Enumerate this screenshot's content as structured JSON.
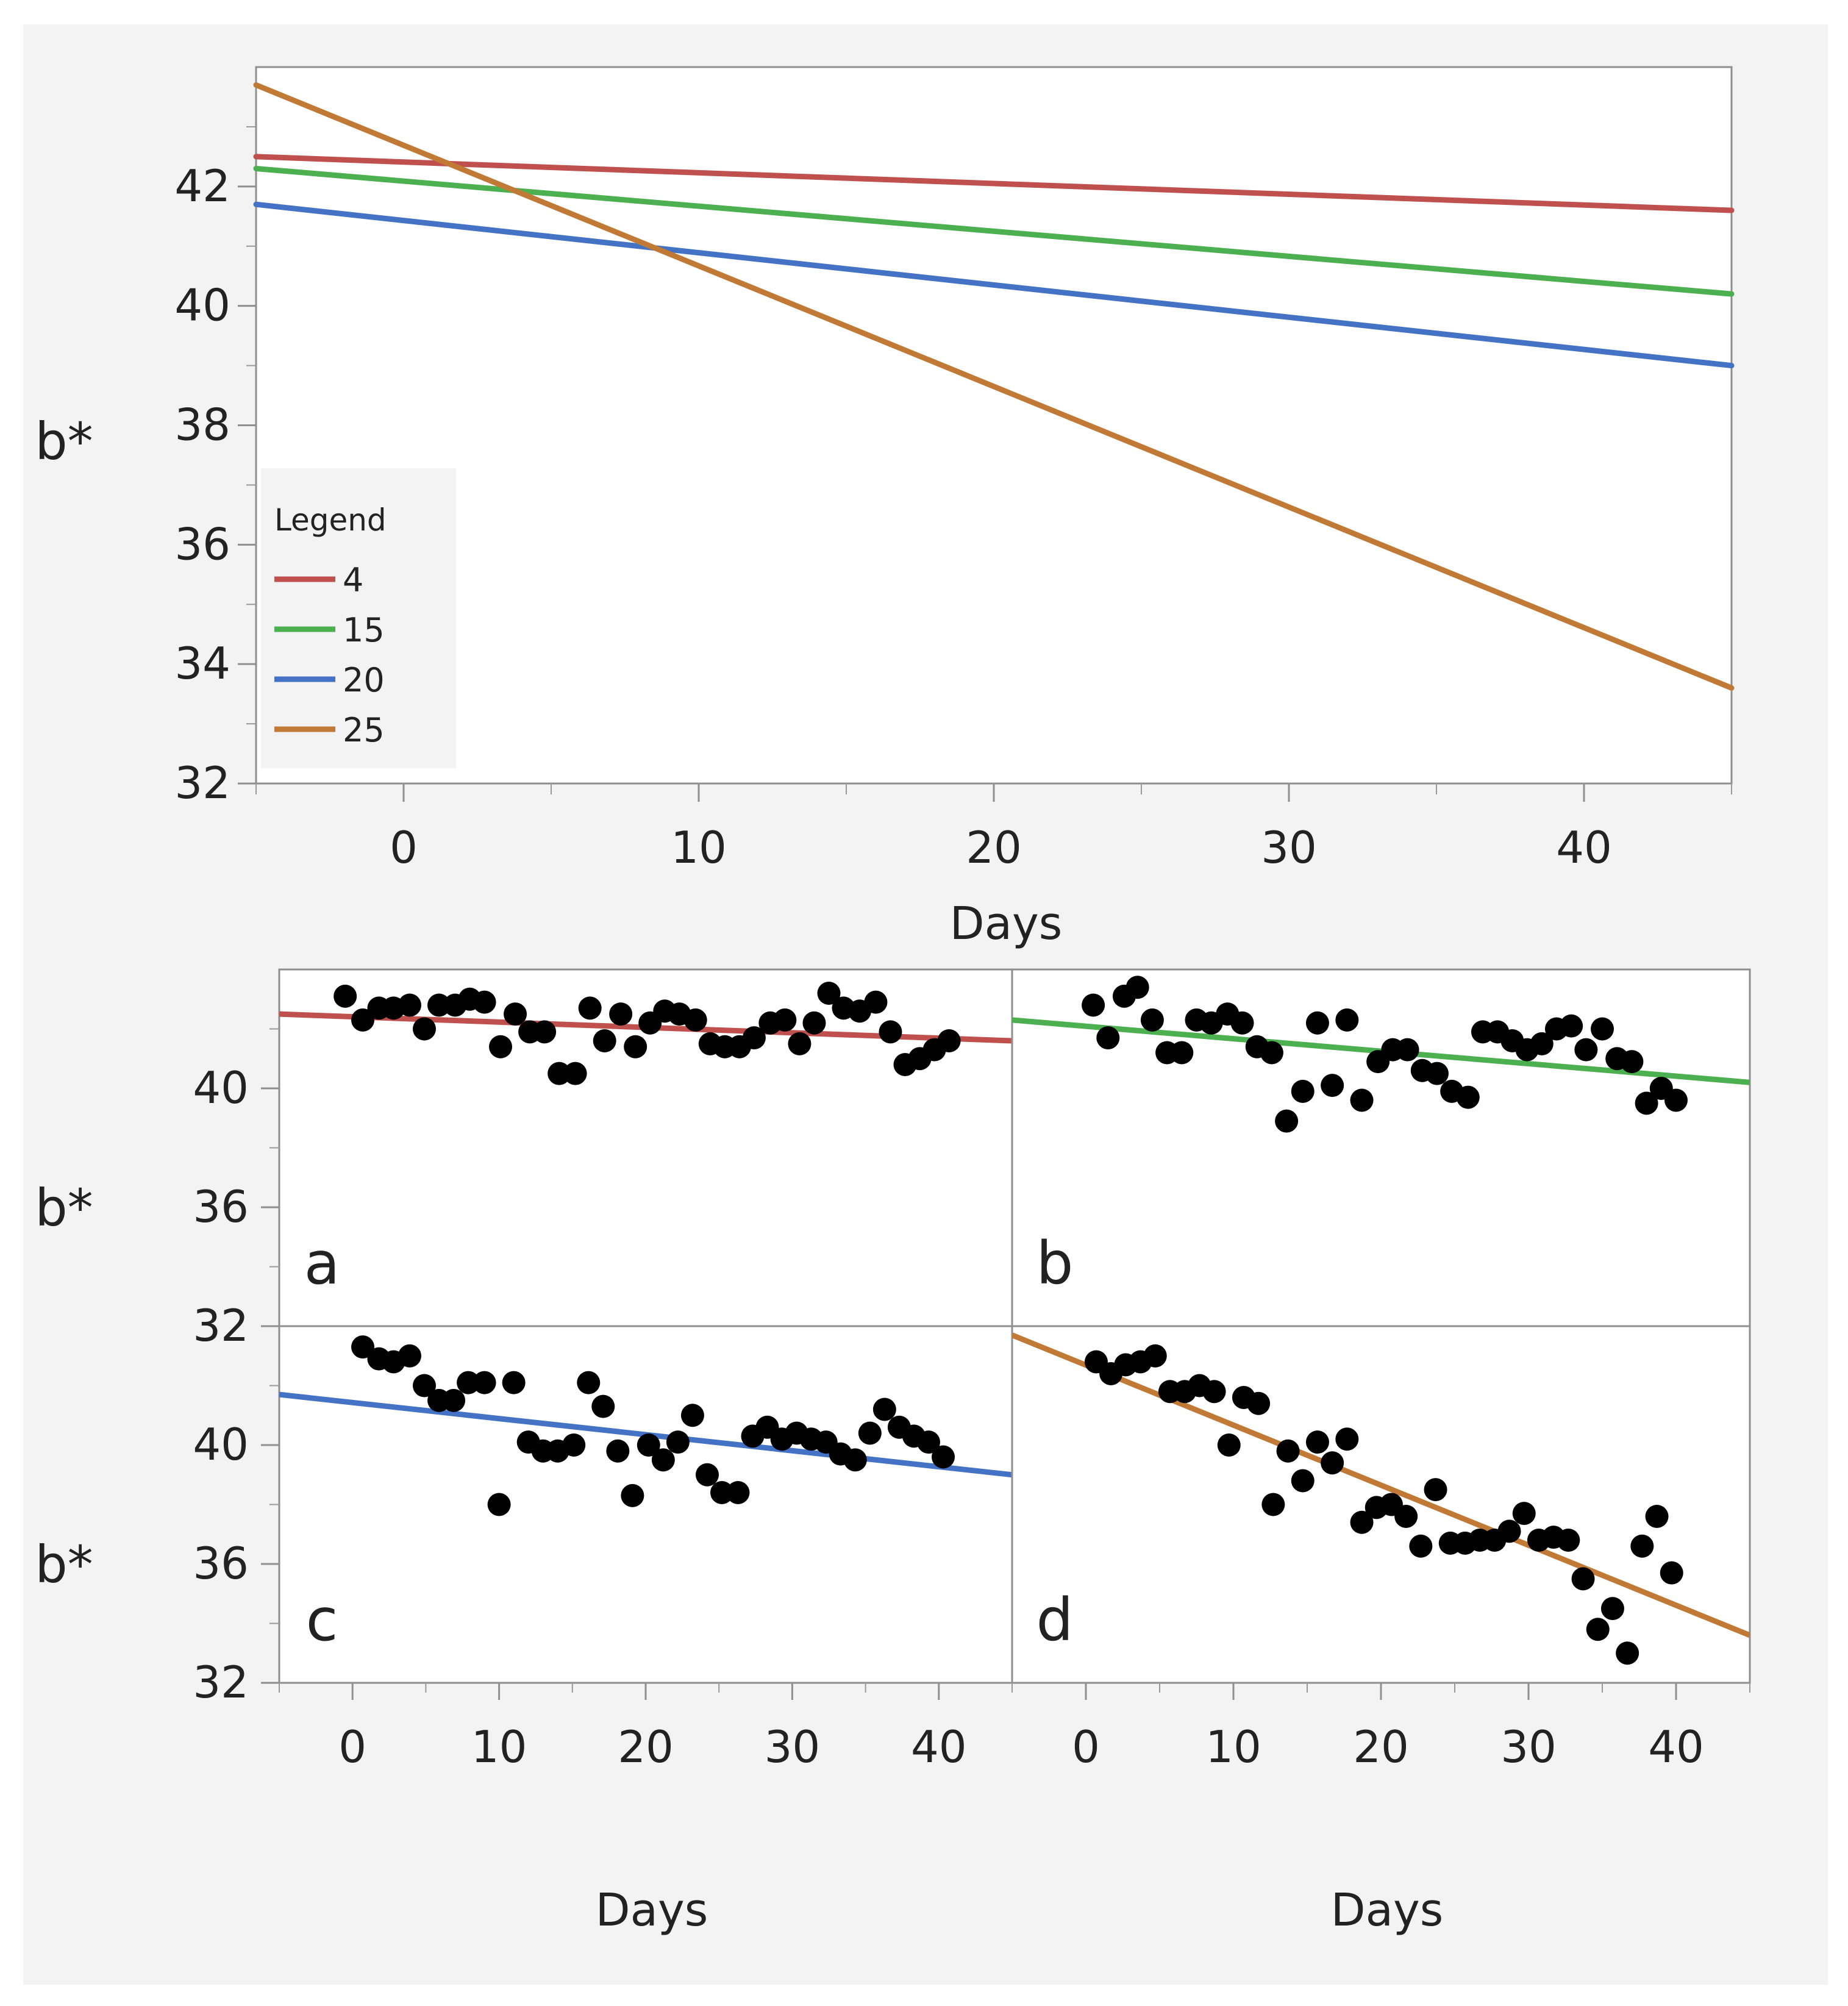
{
  "figure": {
    "background_color": "#f3f3f3",
    "frame_color": "#8f8f8f",
    "minor_tick_color": "#9a9a9a"
  },
  "chart_data": [
    {
      "id": "top",
      "type": "line",
      "title": "",
      "xlabel": "Days",
      "ylabel": "b*",
      "xlim": [
        -5,
        45
      ],
      "ylim": [
        32,
        44
      ],
      "xticks": [
        0,
        10,
        20,
        30,
        40
      ],
      "yticks": [
        32,
        34,
        36,
        38,
        40,
        42
      ],
      "grid": false,
      "legend": {
        "title": "Legend",
        "position": "bottom-left"
      },
      "series": [
        {
          "name": "4",
          "color": "#c0504d",
          "x": [
            -5,
            45
          ],
          "y": [
            42.5,
            41.6
          ]
        },
        {
          "name": "15",
          "color": "#4caf50",
          "x": [
            -5,
            45
          ],
          "y": [
            42.3,
            40.2
          ]
        },
        {
          "name": "20",
          "color": "#4472c4",
          "x": [
            -5,
            45
          ],
          "y": [
            41.7,
            39.0
          ]
        },
        {
          "name": "25",
          "color": "#c07a35",
          "x": [
            -5,
            45
          ],
          "y": [
            43.7,
            33.6
          ]
        }
      ]
    },
    {
      "id": "a",
      "type": "scatter",
      "panel_label": "a",
      "ylabel": "b*",
      "xlim": [
        -5,
        45
      ],
      "ylim": [
        32,
        44
      ],
      "yticks": [
        32,
        36,
        40
      ],
      "fit_line": {
        "color": "#c0504d",
        "x": [
          -5,
          45
        ],
        "y": [
          42.5,
          41.6
        ]
      },
      "points": [
        [
          -0.5,
          43.1
        ],
        [
          0.7,
          42.3
        ],
        [
          1.8,
          42.7
        ],
        [
          2.8,
          42.7
        ],
        [
          3.9,
          42.8
        ],
        [
          4.9,
          42.0
        ],
        [
          5.9,
          42.8
        ],
        [
          7.0,
          42.8
        ],
        [
          8.0,
          43.0
        ],
        [
          9.0,
          42.9
        ],
        [
          10.1,
          41.4
        ],
        [
          11.1,
          42.5
        ],
        [
          12.1,
          41.9
        ],
        [
          13.1,
          41.9
        ],
        [
          14.1,
          40.5
        ],
        [
          15.2,
          40.5
        ],
        [
          16.2,
          42.7
        ],
        [
          17.2,
          41.6
        ],
        [
          18.3,
          42.5
        ],
        [
          19.3,
          41.4
        ],
        [
          20.3,
          42.2
        ],
        [
          21.3,
          42.6
        ],
        [
          22.3,
          42.5
        ],
        [
          23.4,
          42.3
        ],
        [
          24.4,
          41.5
        ],
        [
          25.4,
          41.4
        ],
        [
          26.4,
          41.4
        ],
        [
          27.4,
          41.7
        ],
        [
          28.5,
          42.2
        ],
        [
          29.5,
          42.3
        ],
        [
          30.5,
          41.5
        ],
        [
          31.5,
          42.2
        ],
        [
          32.5,
          43.2
        ],
        [
          33.5,
          42.7
        ],
        [
          34.6,
          42.6
        ],
        [
          35.7,
          42.9
        ],
        [
          36.7,
          41.9
        ],
        [
          37.7,
          40.8
        ],
        [
          38.7,
          41.0
        ],
        [
          39.7,
          41.3
        ],
        [
          40.7,
          41.6
        ]
      ]
    },
    {
      "id": "b",
      "type": "scatter",
      "panel_label": "b",
      "xlim": [
        -5,
        45
      ],
      "ylim": [
        32,
        44
      ],
      "fit_line": {
        "color": "#4caf50",
        "x": [
          -5,
          45
        ],
        "y": [
          42.3,
          40.2
        ]
      },
      "points": [
        [
          0.5,
          42.8
        ],
        [
          1.5,
          41.7
        ],
        [
          2.6,
          43.1
        ],
        [
          3.5,
          43.4
        ],
        [
          4.5,
          42.3
        ],
        [
          5.5,
          41.2
        ],
        [
          6.5,
          41.2
        ],
        [
          7.5,
          42.3
        ],
        [
          8.5,
          42.2
        ],
        [
          9.6,
          42.5
        ],
        [
          10.6,
          42.2
        ],
        [
          11.6,
          41.4
        ],
        [
          12.6,
          41.2
        ],
        [
          13.6,
          38.9
        ],
        [
          14.7,
          39.9
        ],
        [
          15.7,
          42.2
        ],
        [
          16.7,
          40.1
        ],
        [
          17.7,
          42.3
        ],
        [
          18.7,
          39.6
        ],
        [
          19.8,
          40.9
        ],
        [
          20.8,
          41.3
        ],
        [
          21.8,
          41.3
        ],
        [
          22.8,
          40.6
        ],
        [
          23.8,
          40.5
        ],
        [
          24.8,
          39.9
        ],
        [
          25.9,
          39.7
        ],
        [
          26.9,
          41.9
        ],
        [
          27.9,
          41.9
        ],
        [
          28.9,
          41.6
        ],
        [
          29.9,
          41.3
        ],
        [
          30.9,
          41.5
        ],
        [
          31.9,
          42.0
        ],
        [
          32.9,
          42.1
        ],
        [
          33.9,
          41.3
        ],
        [
          35.0,
          42.0
        ],
        [
          36.0,
          41.0
        ],
        [
          37.0,
          40.9
        ],
        [
          38.0,
          39.5
        ],
        [
          39.0,
          40.0
        ],
        [
          40.0,
          39.6
        ]
      ]
    },
    {
      "id": "c",
      "type": "scatter",
      "panel_label": "c",
      "xlabel": "Days",
      "ylabel": "b*",
      "xlim": [
        -5,
        45
      ],
      "ylim": [
        32,
        44
      ],
      "xticks": [
        0,
        10,
        20,
        30,
        40
      ],
      "yticks": [
        32,
        36,
        40
      ],
      "fit_line": {
        "color": "#4472c4",
        "x": [
          -5,
          45
        ],
        "y": [
          41.7,
          39.0
        ]
      },
      "points": [
        [
          0.7,
          43.3
        ],
        [
          1.8,
          42.9
        ],
        [
          2.8,
          42.8
        ],
        [
          3.9,
          43.0
        ],
        [
          4.9,
          42.0
        ],
        [
          5.9,
          41.5
        ],
        [
          6.9,
          41.5
        ],
        [
          7.9,
          42.1
        ],
        [
          9.0,
          42.1
        ],
        [
          10.0,
          38.0
        ],
        [
          11.0,
          42.1
        ],
        [
          12.0,
          40.1
        ],
        [
          13.0,
          39.8
        ],
        [
          14.0,
          39.8
        ],
        [
          15.1,
          40.0
        ],
        [
          16.1,
          42.1
        ],
        [
          17.1,
          41.3
        ],
        [
          18.1,
          39.8
        ],
        [
          19.1,
          38.3
        ],
        [
          20.2,
          40.0
        ],
        [
          21.2,
          39.5
        ],
        [
          22.2,
          40.1
        ],
        [
          23.2,
          41.0
        ],
        [
          24.2,
          39.0
        ],
        [
          25.2,
          38.4
        ],
        [
          26.3,
          38.4
        ],
        [
          27.3,
          40.3
        ],
        [
          28.3,
          40.6
        ],
        [
          29.3,
          40.2
        ],
        [
          30.3,
          40.4
        ],
        [
          31.3,
          40.2
        ],
        [
          32.3,
          40.1
        ],
        [
          33.3,
          39.7
        ],
        [
          34.3,
          39.5
        ],
        [
          35.3,
          40.4
        ],
        [
          36.3,
          41.2
        ],
        [
          37.3,
          40.6
        ],
        [
          38.3,
          40.3
        ],
        [
          39.3,
          40.1
        ],
        [
          40.3,
          39.6
        ]
      ]
    },
    {
      "id": "d",
      "type": "scatter",
      "panel_label": "d",
      "xlabel": "Days",
      "xlim": [
        -5,
        45
      ],
      "ylim": [
        32,
        44
      ],
      "xticks": [
        0,
        10,
        20,
        30,
        40
      ],
      "fit_line": {
        "color": "#c07a35",
        "x": [
          -5,
          45
        ],
        "y": [
          43.7,
          33.6
        ]
      },
      "points": [
        [
          0.7,
          42.8
        ],
        [
          1.7,
          42.4
        ],
        [
          2.7,
          42.7
        ],
        [
          3.7,
          42.8
        ],
        [
          4.7,
          43.0
        ],
        [
          5.7,
          41.8
        ],
        [
          6.7,
          41.8
        ],
        [
          7.7,
          42.0
        ],
        [
          8.7,
          41.8
        ],
        [
          9.7,
          40.0
        ],
        [
          10.7,
          41.6
        ],
        [
          11.7,
          41.4
        ],
        [
          12.7,
          38.0
        ],
        [
          13.7,
          39.8
        ],
        [
          14.7,
          38.8
        ],
        [
          15.7,
          40.1
        ],
        [
          16.7,
          39.4
        ],
        [
          17.7,
          40.2
        ],
        [
          18.7,
          37.4
        ],
        [
          19.7,
          37.9
        ],
        [
          20.7,
          38.0
        ],
        [
          21.7,
          37.6
        ],
        [
          22.7,
          36.6
        ],
        [
          23.7,
          38.5
        ],
        [
          24.7,
          36.7
        ],
        [
          25.7,
          36.7
        ],
        [
          26.7,
          36.8
        ],
        [
          27.7,
          36.8
        ],
        [
          28.7,
          37.1
        ],
        [
          29.7,
          37.7
        ],
        [
          30.7,
          36.8
        ],
        [
          31.7,
          36.9
        ],
        [
          32.7,
          36.8
        ],
        [
          33.7,
          35.5
        ],
        [
          34.7,
          33.8
        ],
        [
          35.7,
          34.5
        ],
        [
          36.7,
          33.0
        ],
        [
          37.7,
          36.6
        ],
        [
          38.7,
          37.6
        ],
        [
          39.7,
          35.7
        ]
      ]
    }
  ]
}
